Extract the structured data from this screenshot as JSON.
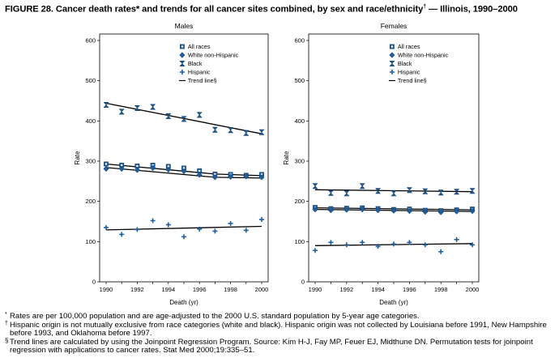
{
  "figure": {
    "title": "FIGURE 28. Cancer death rates* and trends for all cancer sites combined, by sex and race/ethnicity",
    "title_mark": "†",
    "title_suffix": " — Illinois, 1990–2000"
  },
  "footnotes": {
    "asterisk_mark": "*",
    "asterisk": "Rates are per 100,000 population and are age-adjusted to the 2000 U.S. standard population by 5-year age categories.",
    "dagger_mark": "†",
    "dagger": "Hispanic origin is not mutually exclusive from race categories (white and black). Hispanic origin was not collected by Louisiana before 1991, New Hampshire before 1993, and Oklahoma before 1997.",
    "section_mark": "§",
    "section": "Trend lines are calculated by using the Joinpoint Regression Program. Source: Kim H-J, Fay MP, Feuer EJ, Midthune DN. Permutation tests for joinpoint regression with applications to cancer rates. Stat Med 2000;19:335–51."
  },
  "chart_data": [
    {
      "type": "scatter",
      "title": "Males",
      "xlabel": "Death (yr)",
      "ylabel": "Rate",
      "xlim": [
        1990,
        2000
      ],
      "ylim": [
        0,
        600
      ],
      "xticks": [
        "1990",
        "1992",
        "1994",
        "1996",
        "1998",
        "2000"
      ],
      "yticks": [
        "0",
        "100",
        "200",
        "300",
        "400",
        "500",
        "600"
      ],
      "grid": false,
      "legend_position": "top-right",
      "legend": [
        "All races",
        "White non-Hispanic",
        "Black",
        "Hispanic",
        "Trend line§"
      ],
      "x": [
        1990,
        1991,
        1992,
        1993,
        1994,
        1995,
        1996,
        1997,
        1998,
        1999,
        2000
      ],
      "series": [
        {
          "name": "All races",
          "marker": "square",
          "values": [
            293,
            290,
            288,
            290,
            287,
            283,
            276,
            268,
            267,
            265,
            267
          ],
          "trend": [
            [
              1990,
              293
            ],
            [
              1997,
              268
            ],
            [
              2000,
              264
            ]
          ]
        },
        {
          "name": "White non-Hispanic",
          "marker": "diamond",
          "values": [
            281,
            281,
            278,
            283,
            279,
            275,
            266,
            260,
            261,
            262,
            260
          ],
          "trend": [
            [
              1990,
              284
            ],
            [
              1997,
              260
            ],
            [
              2000,
              258
            ]
          ]
        },
        {
          "name": "Black",
          "marker": "hourglass",
          "values": [
            440,
            423,
            432,
            435,
            412,
            405,
            415,
            378,
            377,
            370,
            372
          ],
          "trend": [
            [
              1990,
              444
            ],
            [
              2000,
              368
            ]
          ]
        },
        {
          "name": "Hispanic",
          "marker": "plus",
          "values": [
            135,
            118,
            130,
            152,
            142,
            112,
            131,
            126,
            145,
            128,
            155
          ],
          "trend": [
            [
              1990,
              129
            ],
            [
              2000,
              138
            ]
          ]
        }
      ]
    },
    {
      "type": "scatter",
      "title": "Females",
      "xlabel": "Death (yr)",
      "ylabel": "Rate",
      "xlim": [
        1990,
        2000
      ],
      "ylim": [
        0,
        600
      ],
      "xticks": [
        "1990",
        "1992",
        "1994",
        "1996",
        "1998",
        "2000"
      ],
      "yticks": [
        "0",
        "100",
        "200",
        "300",
        "400",
        "500",
        "600"
      ],
      "grid": false,
      "legend_position": "top-right",
      "legend": [
        "All races",
        "White non-Hispanic",
        "Black",
        "Hispanic",
        "Trend line§"
      ],
      "x": [
        1990,
        1991,
        1992,
        1993,
        1994,
        1995,
        1996,
        1997,
        1998,
        1999,
        2000
      ],
      "series": [
        {
          "name": "All races",
          "marker": "square",
          "values": [
            185,
            182,
            183,
            184,
            182,
            180,
            181,
            178,
            177,
            179,
            181
          ],
          "trend": [
            [
              1990,
              184
            ],
            [
              2000,
              179
            ]
          ]
        },
        {
          "name": "White non-Hispanic",
          "marker": "diamond",
          "values": [
            180,
            178,
            179,
            180,
            178,
            177,
            176,
            174,
            173,
            175,
            176
          ],
          "trend": [
            [
              1990,
              180
            ],
            [
              2000,
              175
            ]
          ]
        },
        {
          "name": "Black",
          "marker": "hourglass",
          "values": [
            238,
            221,
            220,
            238,
            226,
            220,
            228,
            225,
            222,
            224,
            226
          ],
          "trend": [
            [
              1990,
              229
            ],
            [
              2000,
              224
            ]
          ]
        },
        {
          "name": "Hispanic",
          "marker": "plus",
          "values": [
            78,
            98,
            92,
            98,
            88,
            94,
            98,
            92,
            75,
            105,
            92
          ],
          "trend": [
            [
              1990,
              90
            ],
            [
              2000,
              95
            ]
          ]
        }
      ]
    }
  ]
}
